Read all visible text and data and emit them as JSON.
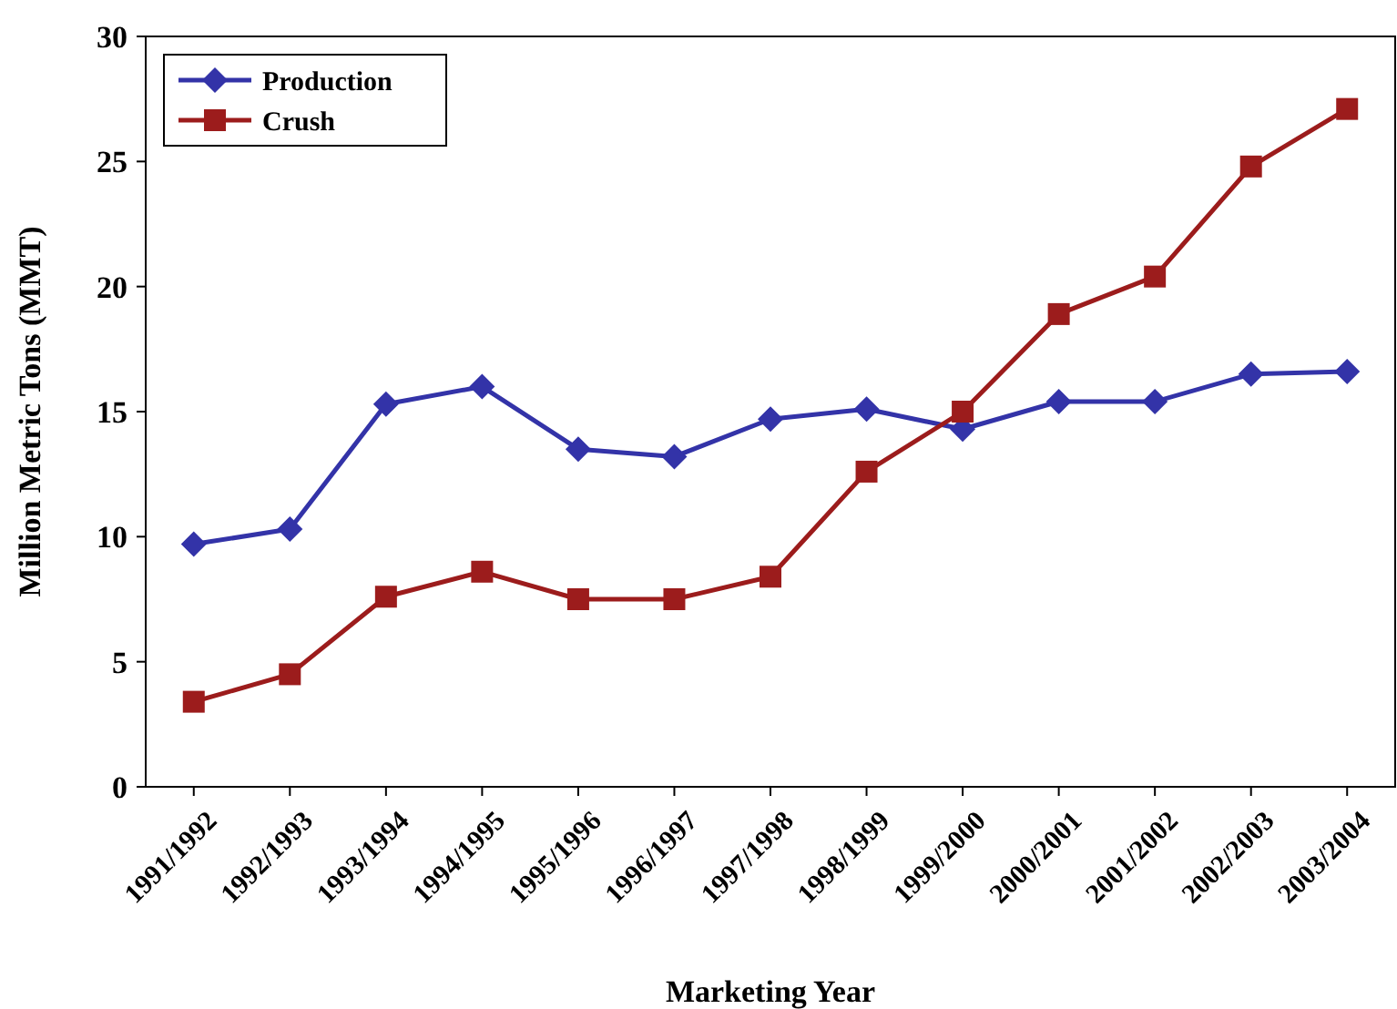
{
  "chart_data": {
    "type": "line",
    "xlabel": "Marketing Year",
    "ylabel": "Million Metric Tons (MMT)",
    "categories": [
      "1991/1992",
      "1992/1993",
      "1993/1994",
      "1994/1995",
      "1995/1996",
      "1996/1997",
      "1997/1998",
      "1998/1999",
      "1999/2000",
      "2000/2001",
      "2001/2002",
      "2002/2003",
      "2003/2004"
    ],
    "series": [
      {
        "name": "Production",
        "color": "#3333a8",
        "marker": "diamond",
        "values": [
          9.7,
          10.3,
          15.3,
          16.0,
          13.5,
          13.2,
          14.7,
          15.1,
          14.3,
          15.4,
          15.4,
          16.5,
          16.6
        ]
      },
      {
        "name": "Crush",
        "color": "#9c1c1c",
        "marker": "square",
        "values": [
          3.4,
          4.5,
          7.6,
          8.6,
          7.5,
          7.5,
          8.4,
          12.6,
          15.0,
          18.9,
          20.4,
          24.8,
          27.1
        ]
      }
    ],
    "ylim": [
      0,
      30
    ],
    "yticks": [
      0,
      5,
      10,
      15,
      20,
      25,
      30
    ],
    "grid": false,
    "legend": "top left",
    "line_style": "solid"
  }
}
